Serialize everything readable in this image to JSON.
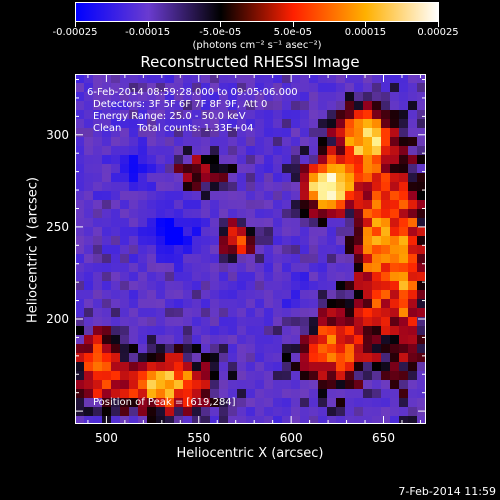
{
  "colorbar": {
    "tick_labels": [
      "-0.00025",
      "-0.00015",
      "-5.0e-05",
      "5.0e-05",
      "0.00015",
      "0.00025"
    ],
    "range": [
      -0.00025,
      0.00025
    ],
    "unit_label": "(photons cm⁻² s⁻¹ asec⁻²)",
    "colors": [
      "#0000ff",
      "#6a3bd0",
      "#000000",
      "#ff2000",
      "#ffb000",
      "#ffffff"
    ]
  },
  "title": "Reconstructed RHESSI Image",
  "info": {
    "time_range": "6-Feb-2014 08:59:28.000 to 09:05:06.000",
    "detectors": "Detectors: 3F 5F 6F 7F 8F 9F, Att 0",
    "energy": "Energy Range: 25.0 - 50.0 keV",
    "clean": "Clean     Total counts: 1.33E+04",
    "peak": "Position of Peak = [619,284]"
  },
  "axes": {
    "x_label": "Heliocentric X (arcsec)",
    "y_label": "Heliocentric Y (arcsec)",
    "x_ticks": [
      500,
      550,
      600,
      650
    ],
    "y_ticks": [
      200,
      250,
      300
    ],
    "x_range": [
      483,
      673
    ],
    "y_range": [
      143,
      333
    ]
  },
  "footer": {
    "timestamp": "7-Feb-2014 11:59"
  }
}
